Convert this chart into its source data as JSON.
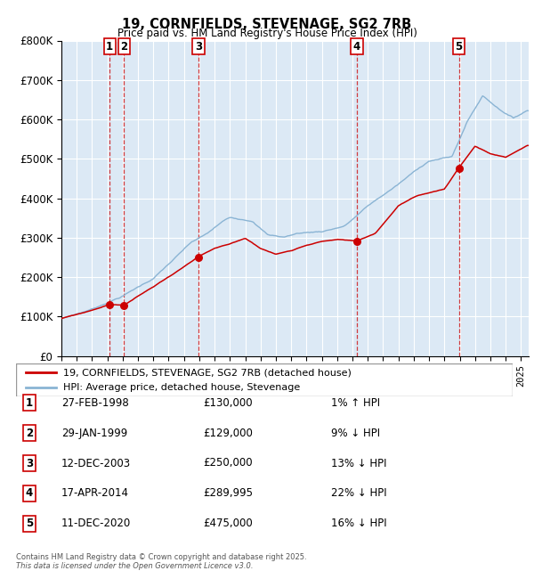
{
  "title": "19, CORNFIELDS, STEVENAGE, SG2 7RB",
  "subtitle": "Price paid vs. HM Land Registry's House Price Index (HPI)",
  "ylim": [
    0,
    800000
  ],
  "yticks": [
    0,
    100000,
    200000,
    300000,
    400000,
    500000,
    600000,
    700000,
    800000
  ],
  "ytick_labels": [
    "£0",
    "£100K",
    "£200K",
    "£300K",
    "£400K",
    "£500K",
    "£600K",
    "£700K",
    "£800K"
  ],
  "background_color": "#ffffff",
  "chart_bg_color": "#dce9f5",
  "grid_color": "#ffffff",
  "sale_color": "#cc0000",
  "hpi_color": "#8ab4d4",
  "vline_color": "#cc0000",
  "transactions": [
    {
      "num": 1,
      "date": "27-FEB-1998",
      "year": 1998.15,
      "price": 130000,
      "label": "1"
    },
    {
      "num": 2,
      "date": "29-JAN-1999",
      "year": 1999.08,
      "price": 129000,
      "label": "2"
    },
    {
      "num": 3,
      "date": "12-DEC-2003",
      "year": 2003.95,
      "price": 250000,
      "label": "3"
    },
    {
      "num": 4,
      "date": "17-APR-2014",
      "year": 2014.29,
      "price": 289995,
      "label": "4"
    },
    {
      "num": 5,
      "date": "11-DEC-2020",
      "year": 2020.95,
      "price": 475000,
      "label": "5"
    }
  ],
  "footer1": "Contains HM Land Registry data © Crown copyright and database right 2025.",
  "footer2": "This data is licensed under the Open Government Licence v3.0.",
  "legend_line1": "19, CORNFIELDS, STEVENAGE, SG2 7RB (detached house)",
  "legend_line2": "HPI: Average price, detached house, Stevenage",
  "table_rows": [
    [
      "1",
      "27-FEB-1998",
      "£130,000",
      "1% ↑ HPI"
    ],
    [
      "2",
      "29-JAN-1999",
      "£129,000",
      "9% ↓ HPI"
    ],
    [
      "3",
      "12-DEC-2003",
      "£250,000",
      "13% ↓ HPI"
    ],
    [
      "4",
      "17-APR-2014",
      "£289,995",
      "22% ↓ HPI"
    ],
    [
      "5",
      "11-DEC-2020",
      "£475,000",
      "16% ↓ HPI"
    ]
  ]
}
